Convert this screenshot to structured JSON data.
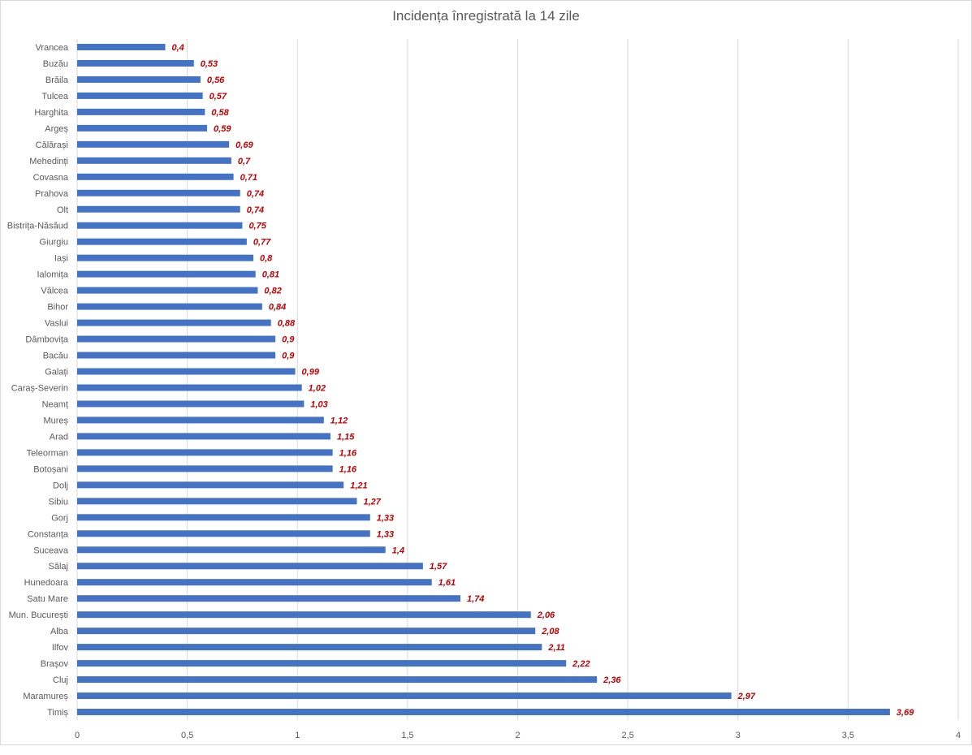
{
  "chart_data": {
    "type": "bar",
    "orientation": "horizontal",
    "title": "Incidența înregistrată la 14 zile",
    "xlabel": "",
    "ylabel": "",
    "xlim": [
      0,
      4
    ],
    "ticks": [
      "0",
      "0,5",
      "1",
      "1,5",
      "2",
      "2,5",
      "3",
      "3,5",
      "4"
    ],
    "tick_values": [
      0,
      0.5,
      1,
      1.5,
      2,
      2.5,
      3,
      3.5,
      4
    ],
    "grid": "vertical",
    "legend": "none",
    "bar_color": "#4472c4",
    "label_color": "#c00000",
    "categories": [
      "Vrancea",
      "Buzău",
      "Brăila",
      "Tulcea",
      "Harghita",
      "Argeș",
      "Călărași",
      "Mehedinți",
      "Covasna",
      "Prahova",
      "Olt",
      "Bistrița-Năsăud",
      "Giurgiu",
      "Iași",
      "Ialomița",
      "Vâlcea",
      "Bihor",
      "Vaslui",
      "Dâmbovița",
      "Bacău",
      "Galați",
      "Caraș-Severin",
      "Neamț",
      "Mureș",
      "Arad",
      "Teleorman",
      "Botoșani",
      "Dolj",
      "Sibiu",
      "Gorj",
      "Constanța",
      "Suceava",
      "Sălaj",
      "Hunedoara",
      "Satu Mare",
      "Mun. București",
      "Alba",
      "Ilfov",
      "Brașov",
      "Cluj",
      "Maramureș",
      "Timiș"
    ],
    "values": [
      0.4,
      0.53,
      0.56,
      0.57,
      0.58,
      0.59,
      0.69,
      0.7,
      0.71,
      0.74,
      0.74,
      0.75,
      0.77,
      0.8,
      0.81,
      0.82,
      0.84,
      0.88,
      0.9,
      0.9,
      0.99,
      1.02,
      1.03,
      1.12,
      1.15,
      1.16,
      1.16,
      1.21,
      1.27,
      1.33,
      1.33,
      1.4,
      1.57,
      1.61,
      1.74,
      2.06,
      2.08,
      2.11,
      2.22,
      2.36,
      2.97,
      3.69
    ],
    "value_labels": [
      "0,4",
      "0,53",
      "0,56",
      "0,57",
      "0,58",
      "0,59",
      "0,69",
      "0,7",
      "0,71",
      "0,74",
      "0,74",
      "0,75",
      "0,77",
      "0,8",
      "0,81",
      "0,82",
      "0,84",
      "0,88",
      "0,9",
      "0,9",
      "0,99",
      "1,02",
      "1,03",
      "1,12",
      "1,15",
      "1,16",
      "1,16",
      "1,21",
      "1,27",
      "1,33",
      "1,33",
      "1,4",
      "1,57",
      "1,61",
      "1,74",
      "2,06",
      "2,08",
      "2,11",
      "2,22",
      "2,36",
      "2,97",
      "3,69"
    ]
  }
}
